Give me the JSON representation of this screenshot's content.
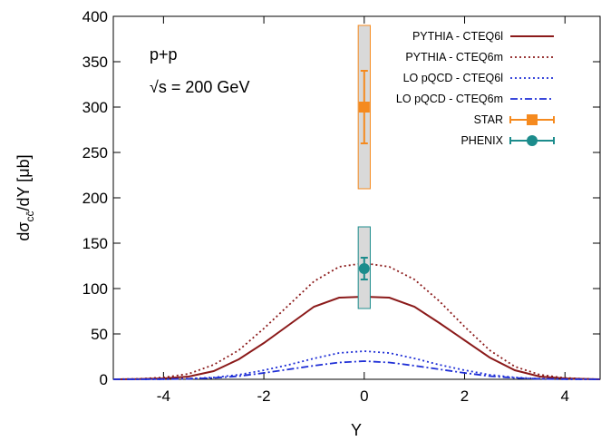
{
  "chart_data": {
    "type": "line",
    "xlabel": "Y",
    "ylabel_parts": [
      "dσ",
      "cc̄",
      "/dY [μb]"
    ],
    "xlim": [
      -5,
      4.7
    ],
    "ylim": [
      0,
      400
    ],
    "xticks": [
      -4,
      -2,
      0,
      2,
      4
    ],
    "yticks": [
      0,
      50,
      100,
      150,
      200,
      250,
      300,
      350,
      400
    ],
    "grid": false,
    "legend_position": "top-right",
    "annotations": [
      "p+p",
      "√s = 200 GeV"
    ],
    "series": [
      {
        "name": "PYTHIA - CTEQ6l",
        "style": "solid",
        "color": "#8b1a1a",
        "x": [
          -5,
          -4.5,
          -4,
          -3.5,
          -3,
          -2.5,
          -2,
          -1.5,
          -1,
          -0.5,
          0,
          0.5,
          1,
          1.5,
          2,
          2.5,
          3,
          3.5,
          4,
          4.5,
          4.7
        ],
        "y": [
          0,
          0.2,
          1,
          3,
          9,
          22,
          40,
          60,
          80,
          90,
          91,
          90,
          80,
          62,
          43,
          24,
          10,
          3,
          1,
          0.2,
          0
        ]
      },
      {
        "name": "PYTHIA - CTEQ6m",
        "style": "dotted",
        "color": "#8b1a1a",
        "x": [
          -5,
          -4.5,
          -4,
          -3.5,
          -3,
          -2.5,
          -2,
          -1.5,
          -1,
          -0.5,
          0,
          0.5,
          1,
          1.5,
          2,
          2.5,
          3,
          3.5,
          4,
          4.5,
          4.7
        ],
        "y": [
          0,
          0.5,
          2,
          6,
          16,
          32,
          56,
          82,
          108,
          124,
          128,
          124,
          110,
          86,
          58,
          32,
          14,
          5,
          1.5,
          0.3,
          0
        ]
      },
      {
        "name": "LO pQCD - CTEQ6l",
        "style": "dotted",
        "color": "#1f2fd6",
        "x": [
          -5,
          -4.5,
          -4,
          -3.5,
          -3,
          -2.5,
          -2,
          -1.5,
          -1,
          -0.5,
          0,
          0.5,
          1,
          1.5,
          2,
          2.5,
          3,
          3.5,
          4,
          4.5,
          4.7
        ],
        "y": [
          0,
          0,
          0.2,
          0.7,
          2,
          5,
          10,
          16,
          23,
          29,
          31,
          29,
          23,
          16,
          10,
          5,
          2,
          0.7,
          0.2,
          0,
          0
        ]
      },
      {
        "name": "LO pQCD - CTEQ6m",
        "style": "dashdot",
        "color": "#1f2fd6",
        "x": [
          -5,
          -4.5,
          -4,
          -3.5,
          -3,
          -2.5,
          -2,
          -1.5,
          -1,
          -0.5,
          0,
          0.5,
          1,
          1.5,
          2,
          2.5,
          3,
          3.5,
          4,
          4.5,
          4.7
        ],
        "y": [
          0,
          0,
          0.1,
          0.5,
          1.5,
          3.5,
          7,
          11,
          15,
          18.5,
          20,
          18.5,
          15,
          11,
          7,
          3.5,
          1.5,
          0.5,
          0.1,
          0,
          0
        ]
      }
    ],
    "points": [
      {
        "name": "STAR",
        "color": "#f58a1f",
        "marker": "square",
        "x": 0,
        "y": 300,
        "stat_err": 40,
        "sys_band": [
          210,
          390
        ],
        "band_halfwidth": 0.12
      },
      {
        "name": "PHENIX",
        "color": "#1c8c8c",
        "marker": "circle",
        "x": 0,
        "y": 122,
        "stat_err": 12,
        "sys_band": [
          78,
          168
        ],
        "band_halfwidth": 0.12
      }
    ]
  }
}
